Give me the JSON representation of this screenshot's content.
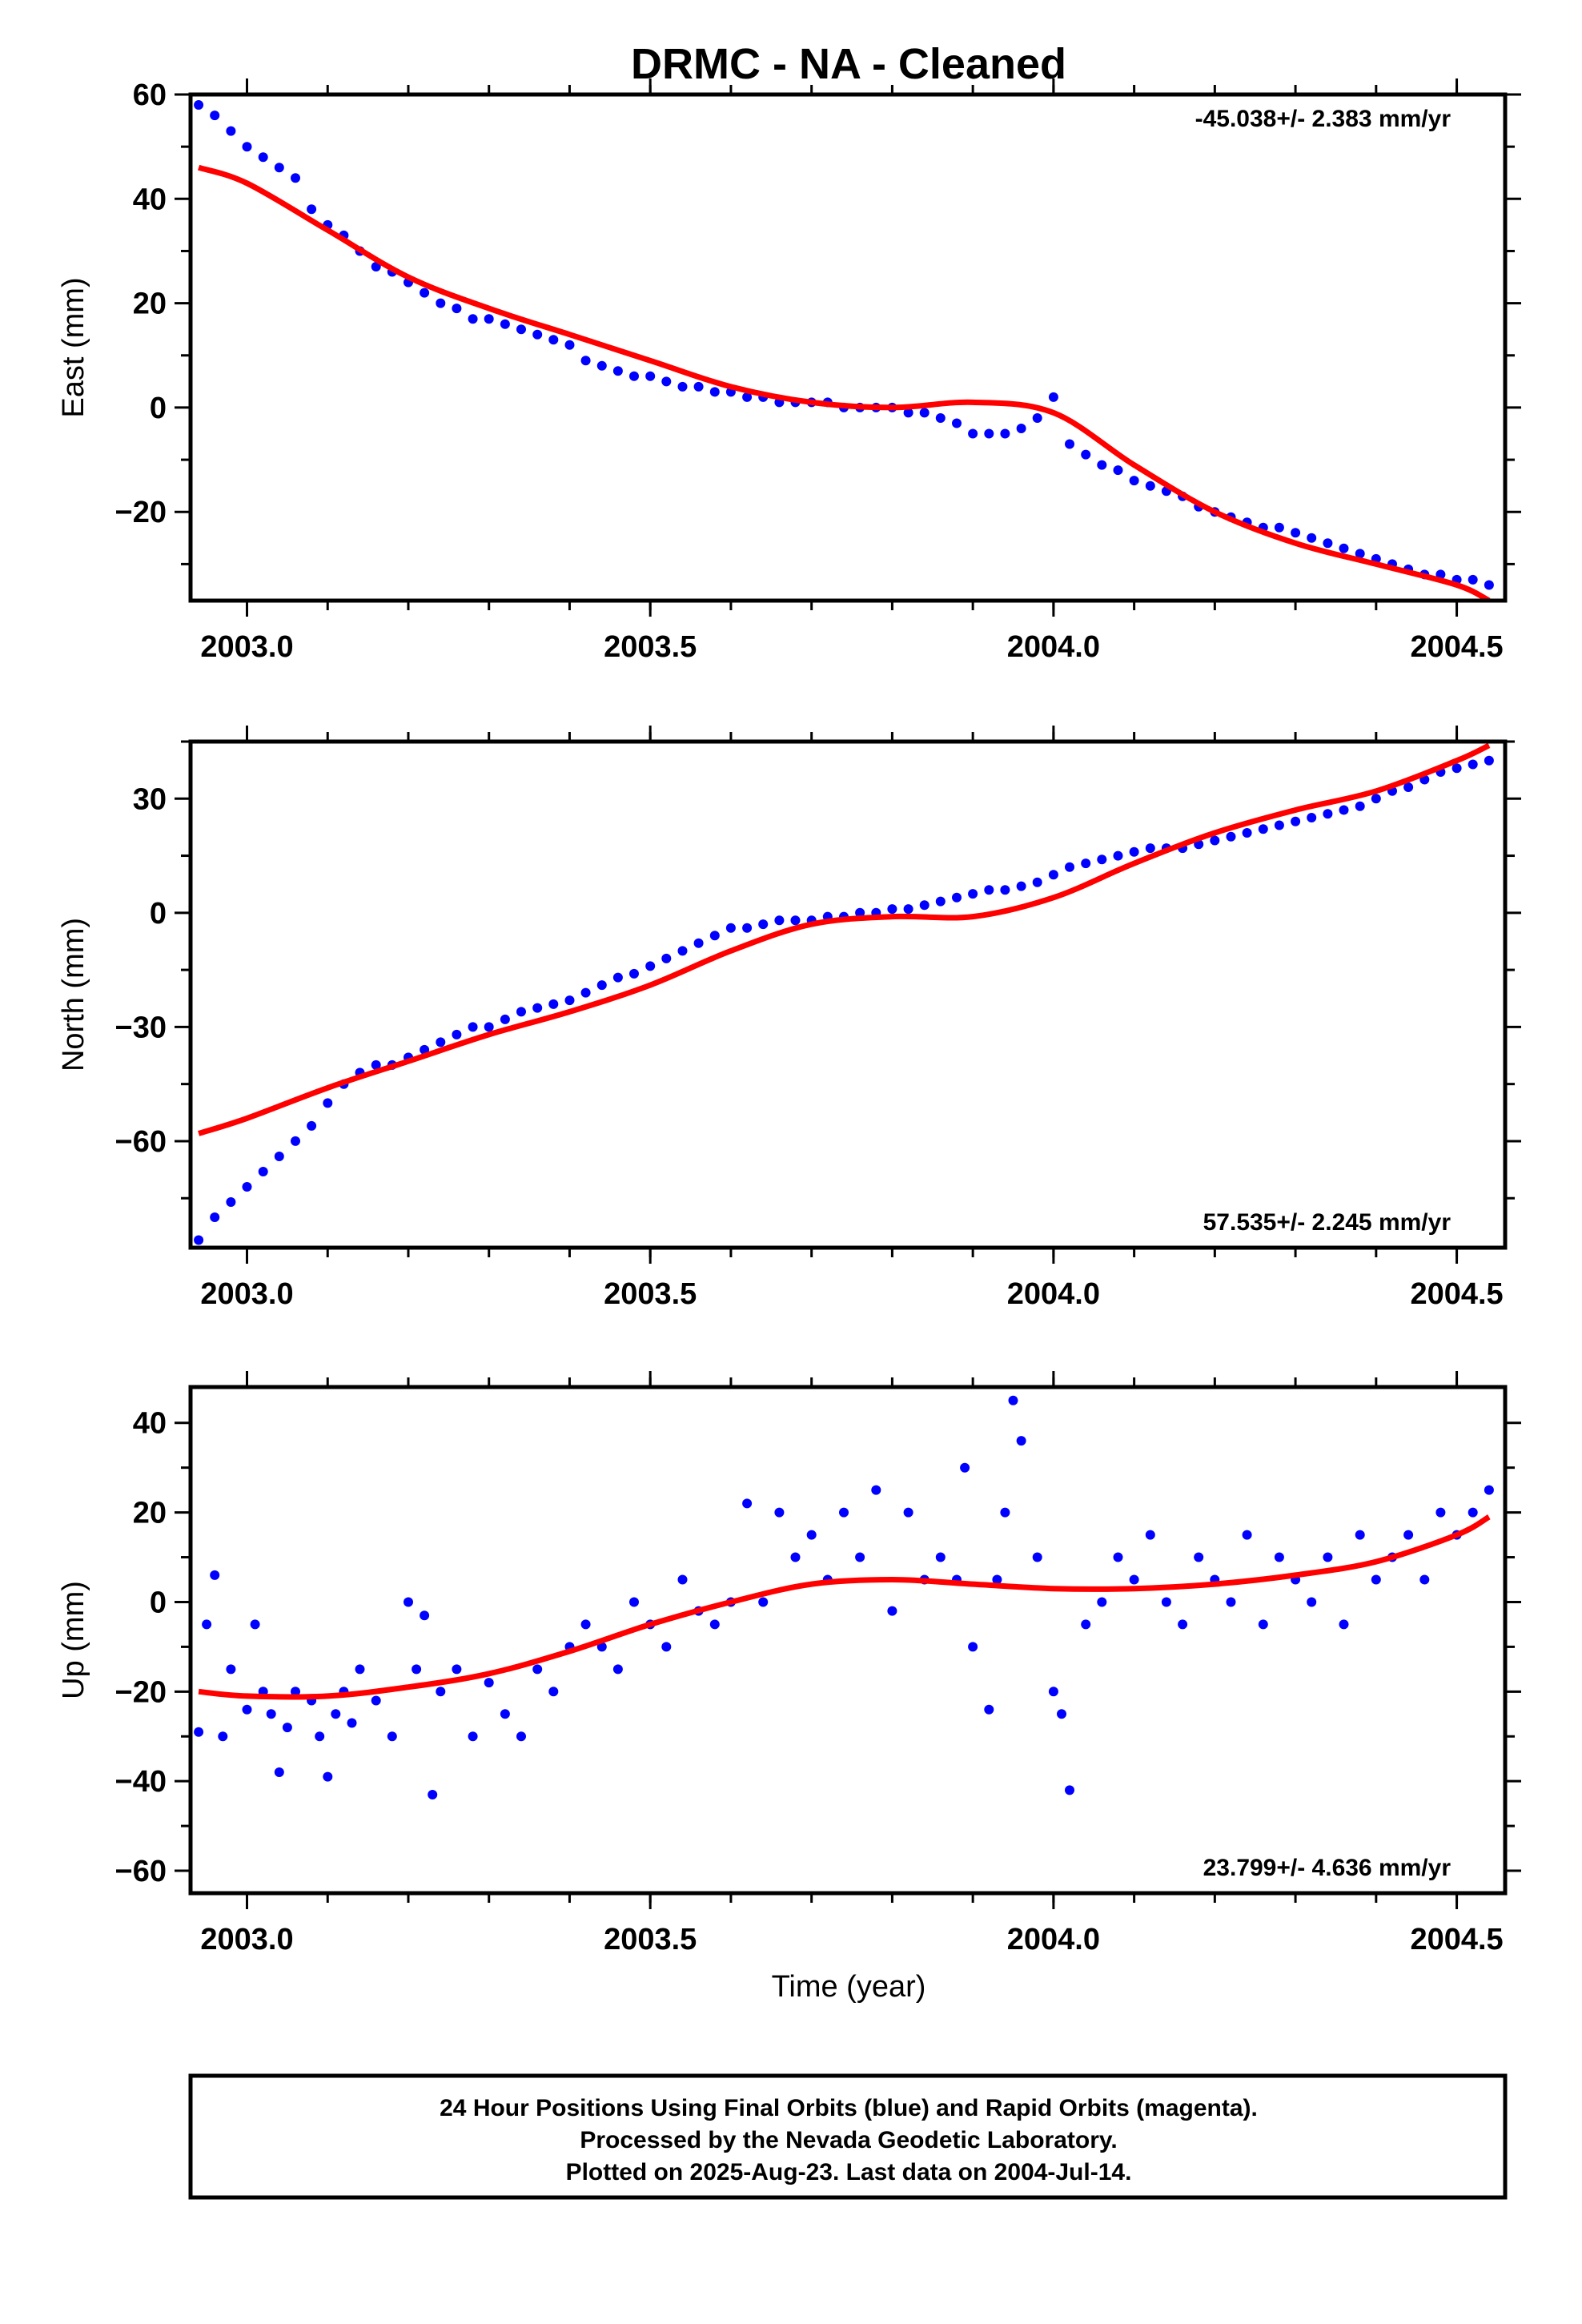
{
  "title": "DRMC  - NA - Cleaned",
  "xlabel": "Time (year)",
  "footer": {
    "lines": [
      "24 Hour Positions Using Final Orbits (blue) and Rapid Orbits (magenta).",
      "Processed by the Nevada Geodetic Laboratory.",
      "Plotted on 2025-Aug-23. Last data on 2004-Jul-14."
    ]
  },
  "colors": {
    "points": "#0000ff",
    "fit": "#ff0000",
    "axes": "#000000"
  },
  "chart_data": [
    {
      "type": "scatter",
      "ylabel": "East (mm)",
      "rate": "-45.038+/- 2.383 mm/yr",
      "rate_position": "top-right",
      "xlim": [
        2002.93,
        2004.56
      ],
      "ylim": [
        -37,
        60
      ],
      "xticks": [
        2003.0,
        2003.5,
        2004.0,
        2004.5
      ],
      "xtick_labels": [
        "2003.0",
        "2003.5",
        "2004.0",
        "2004.5"
      ],
      "yticks": [
        60,
        40,
        20,
        0,
        -20
      ],
      "ytick_labels": [
        "60",
        "40",
        "20",
        "0",
        "−20"
      ],
      "series": [
        {
          "kind": "points",
          "x": [
            2002.94,
            2002.96,
            2002.98,
            2003.0,
            2003.02,
            2003.04,
            2003.06,
            2003.08,
            2003.1,
            2003.12,
            2003.14,
            2003.16,
            2003.18,
            2003.2,
            2003.22,
            2003.24,
            2003.26,
            2003.28,
            2003.3,
            2003.32,
            2003.34,
            2003.36,
            2003.38,
            2003.4,
            2003.42,
            2003.44,
            2003.46,
            2003.48,
            2003.5,
            2003.52,
            2003.54,
            2003.56,
            2003.58,
            2003.6,
            2003.62,
            2003.64,
            2003.66,
            2003.68,
            2003.7,
            2003.72,
            2003.74,
            2003.76,
            2003.78,
            2003.8,
            2003.82,
            2003.84,
            2003.86,
            2003.88,
            2003.9,
            2003.92,
            2003.94,
            2003.96,
            2003.98,
            2004.0,
            2004.02,
            2004.04,
            2004.06,
            2004.08,
            2004.1,
            2004.12,
            2004.14,
            2004.16,
            2004.18,
            2004.2,
            2004.22,
            2004.24,
            2004.26,
            2004.28,
            2004.3,
            2004.32,
            2004.34,
            2004.36,
            2004.38,
            2004.4,
            2004.42,
            2004.44,
            2004.46,
            2004.48,
            2004.5,
            2004.52,
            2004.54
          ],
          "y": [
            58,
            56,
            53,
            50,
            48,
            46,
            44,
            38,
            35,
            33,
            30,
            27,
            26,
            24,
            22,
            20,
            19,
            17,
            17,
            16,
            15,
            14,
            13,
            12,
            9,
            8,
            7,
            6,
            6,
            5,
            4,
            4,
            3,
            3,
            2,
            2,
            1,
            1,
            1,
            1,
            0,
            0,
            0,
            0,
            -1,
            -1,
            -2,
            -3,
            -5,
            -5,
            -5,
            -4,
            -2,
            2,
            -7,
            -9,
            -11,
            -12,
            -14,
            -15,
            -16,
            -17,
            -19,
            -20,
            -21,
            -22,
            -23,
            -23,
            -24,
            -25,
            -26,
            -27,
            -28,
            -29,
            -30,
            -31,
            -32,
            -32,
            -33,
            -33,
            -34
          ]
        },
        {
          "kind": "fit",
          "x": [
            2002.94,
            2003.0,
            2003.1,
            2003.2,
            2003.3,
            2003.4,
            2003.5,
            2003.6,
            2003.7,
            2003.8,
            2003.9,
            2004.0,
            2004.1,
            2004.2,
            2004.3,
            2004.4,
            2004.5,
            2004.54
          ],
          "y": [
            46,
            43,
            34,
            25,
            19,
            14,
            9,
            4,
            1,
            0,
            1,
            -1,
            -11,
            -20,
            -26,
            -30,
            -34,
            -37
          ]
        }
      ]
    },
    {
      "type": "scatter",
      "ylabel": "North (mm)",
      "rate": "57.535+/- 2.245 mm/yr",
      "rate_position": "bottom-right",
      "xlim": [
        2002.93,
        2004.56
      ],
      "ylim": [
        -88,
        45
      ],
      "xticks": [
        2003.0,
        2003.5,
        2004.0,
        2004.5
      ],
      "xtick_labels": [
        "2003.0",
        "2003.5",
        "2004.0",
        "2004.5"
      ],
      "yticks": [
        30,
        0,
        -30,
        -60
      ],
      "ytick_labels": [
        "30",
        "0",
        "−30",
        "−60"
      ],
      "series": [
        {
          "kind": "points",
          "x": [
            2002.94,
            2002.96,
            2002.98,
            2003.0,
            2003.02,
            2003.04,
            2003.06,
            2003.08,
            2003.1,
            2003.12,
            2003.14,
            2003.16,
            2003.18,
            2003.2,
            2003.22,
            2003.24,
            2003.26,
            2003.28,
            2003.3,
            2003.32,
            2003.34,
            2003.36,
            2003.38,
            2003.4,
            2003.42,
            2003.44,
            2003.46,
            2003.48,
            2003.5,
            2003.52,
            2003.54,
            2003.56,
            2003.58,
            2003.6,
            2003.62,
            2003.64,
            2003.66,
            2003.68,
            2003.7,
            2003.72,
            2003.74,
            2003.76,
            2003.78,
            2003.8,
            2003.82,
            2003.84,
            2003.86,
            2003.88,
            2003.9,
            2003.92,
            2003.94,
            2003.96,
            2003.98,
            2004.0,
            2004.02,
            2004.04,
            2004.06,
            2004.08,
            2004.1,
            2004.12,
            2004.14,
            2004.16,
            2004.18,
            2004.2,
            2004.22,
            2004.24,
            2004.26,
            2004.28,
            2004.3,
            2004.32,
            2004.34,
            2004.36,
            2004.38,
            2004.4,
            2004.42,
            2004.44,
            2004.46,
            2004.48,
            2004.5,
            2004.52,
            2004.54
          ],
          "y": [
            -86,
            -80,
            -76,
            -72,
            -68,
            -64,
            -60,
            -56,
            -50,
            -45,
            -42,
            -40,
            -40,
            -38,
            -36,
            -34,
            -32,
            -30,
            -30,
            -28,
            -26,
            -25,
            -24,
            -23,
            -21,
            -19,
            -17,
            -16,
            -14,
            -12,
            -10,
            -8,
            -6,
            -4,
            -4,
            -3,
            -2,
            -2,
            -2,
            -1,
            -1,
            0,
            0,
            1,
            1,
            2,
            3,
            4,
            5,
            6,
            6,
            7,
            8,
            10,
            12,
            13,
            14,
            15,
            16,
            17,
            17,
            17,
            18,
            19,
            20,
            21,
            22,
            23,
            24,
            25,
            26,
            27,
            28,
            30,
            32,
            33,
            35,
            37,
            38,
            39,
            40
          ]
        },
        {
          "kind": "fit",
          "x": [
            2002.94,
            2003.0,
            2003.1,
            2003.2,
            2003.3,
            2003.4,
            2003.5,
            2003.6,
            2003.7,
            2003.8,
            2003.9,
            2004.0,
            2004.1,
            2004.2,
            2004.3,
            2004.4,
            2004.5,
            2004.54
          ],
          "y": [
            -58,
            -54,
            -46,
            -39,
            -32,
            -26,
            -19,
            -10,
            -3,
            -1,
            -1,
            4,
            13,
            21,
            27,
            32,
            40,
            44
          ]
        }
      ]
    },
    {
      "type": "scatter",
      "ylabel": "Up (mm)",
      "rate": "23.799+/- 4.636 mm/yr",
      "rate_position": "bottom-right",
      "xlim": [
        2002.93,
        2004.56
      ],
      "ylim": [
        -65,
        48
      ],
      "xticks": [
        2003.0,
        2003.5,
        2004.0,
        2004.5
      ],
      "xtick_labels": [
        "2003.0",
        "2003.5",
        "2004.0",
        "2004.5"
      ],
      "yticks": [
        40,
        20,
        0,
        -20,
        -40,
        -60
      ],
      "ytick_labels": [
        "40",
        "20",
        "0",
        "−20",
        "−40",
        "−60"
      ],
      "series": [
        {
          "kind": "points",
          "x": [
            2002.94,
            2002.95,
            2002.96,
            2002.97,
            2002.98,
            2003.0,
            2003.01,
            2003.02,
            2003.03,
            2003.04,
            2003.05,
            2003.06,
            2003.08,
            2003.09,
            2003.1,
            2003.11,
            2003.12,
            2003.13,
            2003.14,
            2003.16,
            2003.18,
            2003.2,
            2003.21,
            2003.22,
            2003.23,
            2003.24,
            2003.26,
            2003.28,
            2003.3,
            2003.32,
            2003.34,
            2003.36,
            2003.38,
            2003.4,
            2003.42,
            2003.44,
            2003.46,
            2003.48,
            2003.5,
            2003.52,
            2003.54,
            2003.56,
            2003.58,
            2003.6,
            2003.62,
            2003.64,
            2003.66,
            2003.68,
            2003.7,
            2003.72,
            2003.74,
            2003.76,
            2003.78,
            2003.8,
            2003.82,
            2003.84,
            2003.86,
            2003.88,
            2003.89,
            2003.9,
            2003.92,
            2003.93,
            2003.94,
            2003.95,
            2003.96,
            2003.98,
            2004.0,
            2004.01,
            2004.02,
            2004.04,
            2004.06,
            2004.08,
            2004.1,
            2004.12,
            2004.14,
            2004.16,
            2004.18,
            2004.2,
            2004.22,
            2004.24,
            2004.26,
            2004.28,
            2004.3,
            2004.32,
            2004.34,
            2004.36,
            2004.38,
            2004.4,
            2004.42,
            2004.44,
            2004.46,
            2004.48,
            2004.5,
            2004.52,
            2004.54
          ],
          "y": [
            -29,
            -5,
            6,
            -30,
            -15,
            -24,
            -5,
            -20,
            -25,
            -38,
            -28,
            -20,
            -22,
            -30,
            -39,
            -25,
            -20,
            -27,
            -15,
            -22,
            -30,
            0,
            -15,
            -3,
            -43,
            -20,
            -15,
            -30,
            -18,
            -25,
            -30,
            -15,
            -20,
            -10,
            -5,
            -10,
            -15,
            0,
            -5,
            -10,
            5,
            -2,
            -5,
            0,
            22,
            0,
            20,
            10,
            15,
            5,
            20,
            10,
            25,
            -2,
            20,
            5,
            10,
            5,
            30,
            -10,
            -24,
            5,
            20,
            45,
            36,
            10,
            -20,
            -25,
            -42,
            -5,
            0,
            10,
            5,
            15,
            0,
            -5,
            10,
            5,
            0,
            15,
            -5,
            10,
            5,
            0,
            10,
            -5,
            15,
            5,
            10,
            15,
            5,
            20,
            15,
            20,
            25
          ]
        },
        {
          "kind": "fit",
          "x": [
            2002.94,
            2003.0,
            2003.1,
            2003.2,
            2003.3,
            2003.4,
            2003.5,
            2003.6,
            2003.7,
            2003.8,
            2003.9,
            2004.0,
            2004.1,
            2004.2,
            2004.3,
            2004.4,
            2004.5,
            2004.54
          ],
          "y": [
            -20,
            -21,
            -21,
            -19,
            -16,
            -11,
            -5,
            0,
            4,
            5,
            4,
            3,
            3,
            4,
            6,
            9,
            15,
            19
          ]
        }
      ]
    }
  ]
}
